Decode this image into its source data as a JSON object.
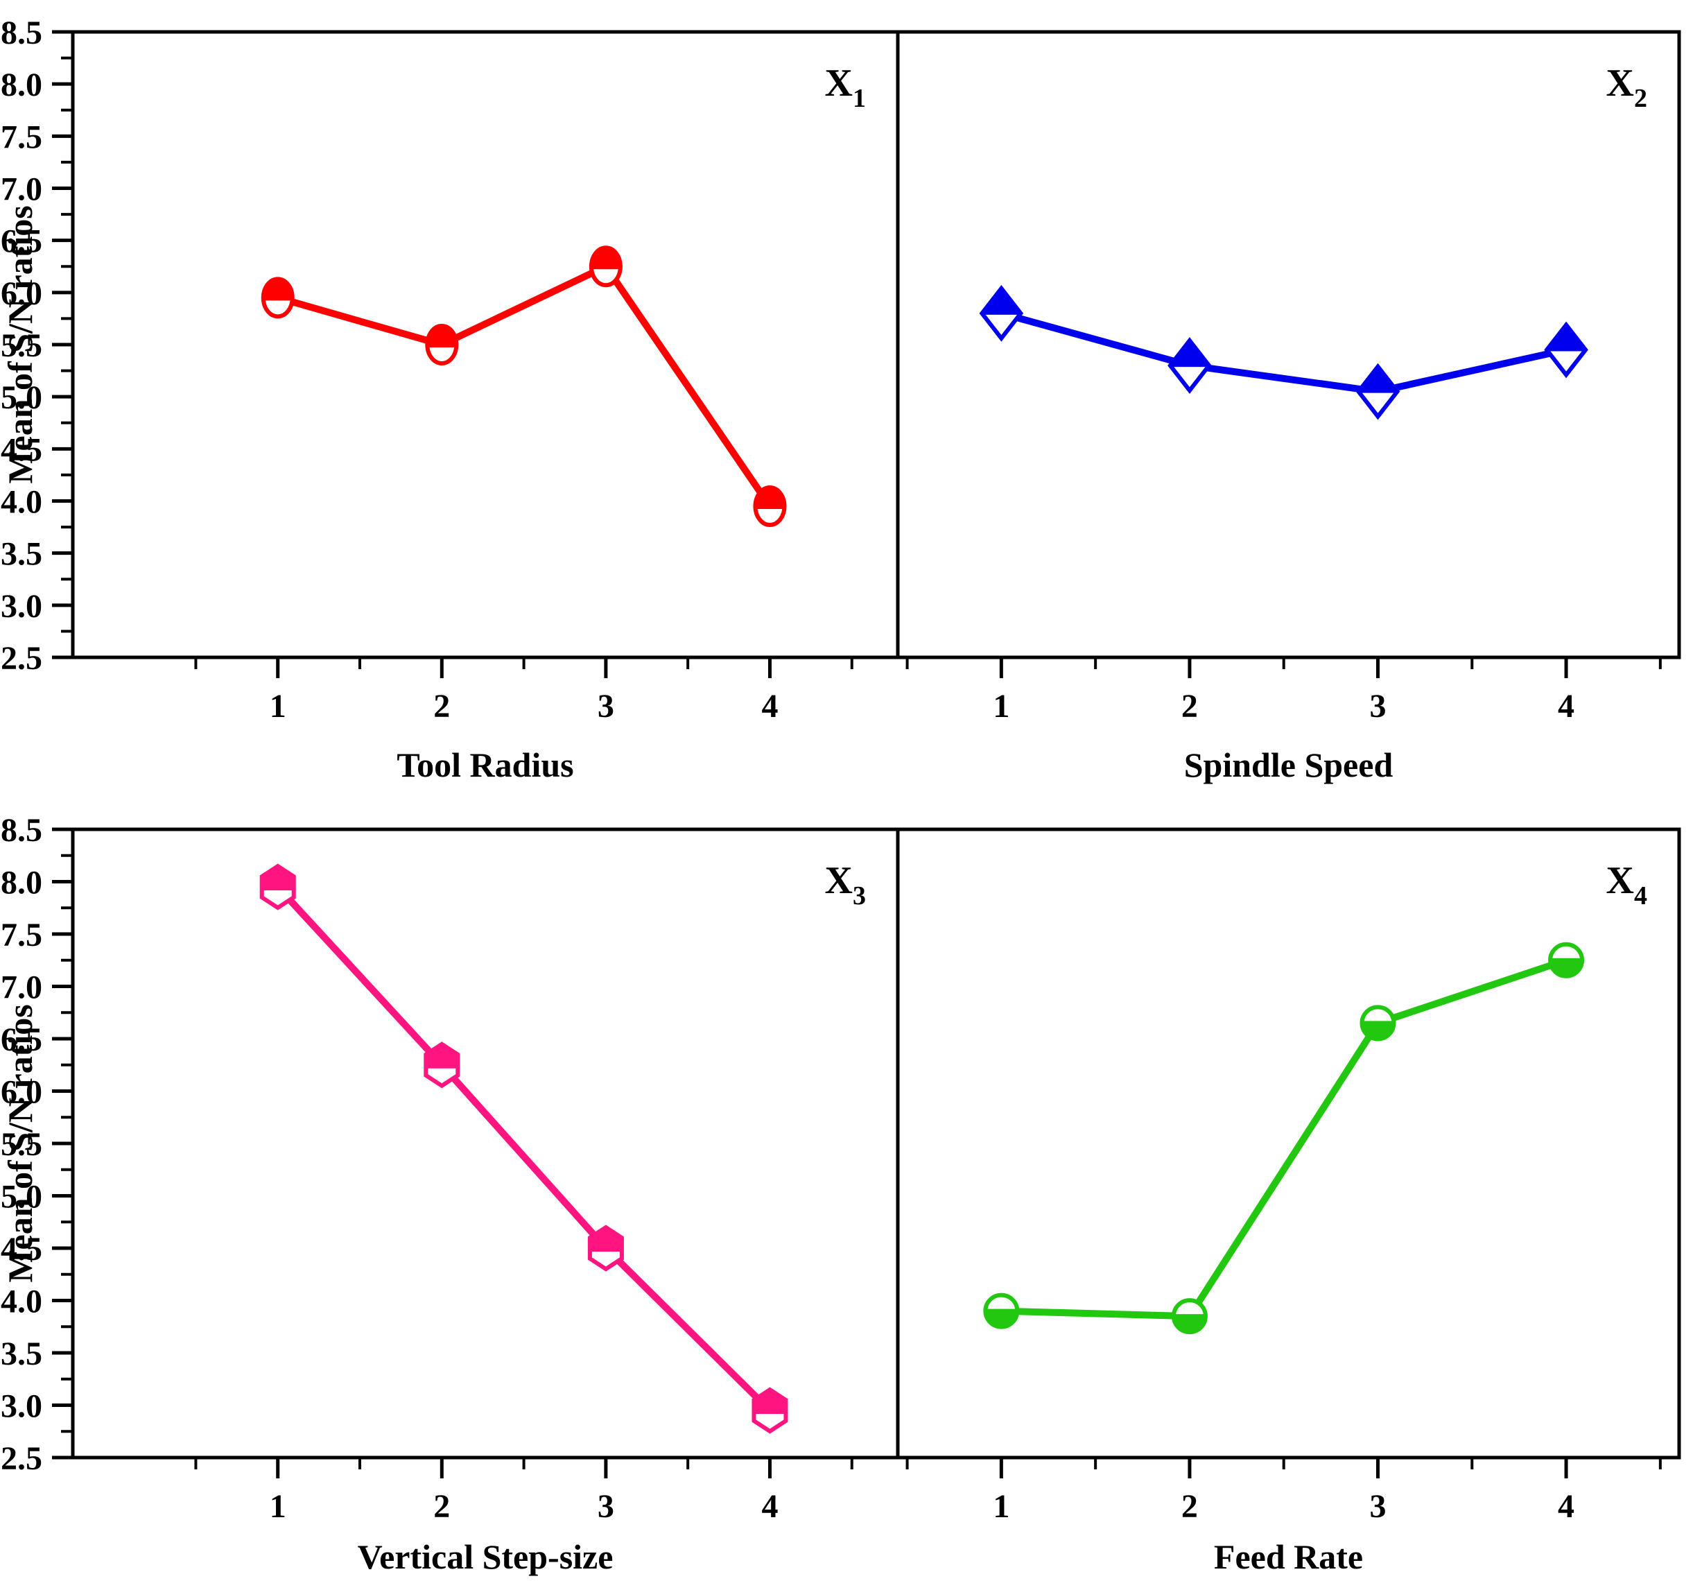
{
  "figure": {
    "background": "#ffffff",
    "frame_color": "#000000",
    "ylabel": "Mean of S/N ratios",
    "grid": "off",
    "legend": "none"
  },
  "chart_data": [
    {
      "type": "line",
      "panel": "top-left",
      "corner_label": "X",
      "corner_label_sub": "1",
      "xlabel": "Tool Radius",
      "color": "#ff0000",
      "marker": "circle-half-top",
      "x": [
        1,
        2,
        3,
        4
      ],
      "values": [
        5.95,
        5.5,
        6.25,
        3.95
      ],
      "x_tick_labels": [
        "1",
        "2",
        "3",
        "4"
      ],
      "xlim": [
        -0.25,
        4.78
      ],
      "ylim": [
        2.5,
        8.5
      ],
      "y_major_step": 0.5,
      "y_minor_step": 0.25,
      "y_tick_labels": [
        "2.5",
        "3.0",
        "3.5",
        "4.0",
        "4.5",
        "5.0",
        "5.5",
        "6.0",
        "6.5",
        "7.0",
        "7.5",
        "8.0",
        "8.5"
      ]
    },
    {
      "type": "line",
      "panel": "top-right",
      "corner_label": "X",
      "corner_label_sub": "2",
      "xlabel": "Spindle Speed",
      "color": "#0000ee",
      "marker": "diamond-half-top",
      "x": [
        1,
        2,
        3,
        4
      ],
      "values": [
        5.8,
        5.3,
        5.05,
        5.45
      ],
      "x_tick_labels": [
        "1",
        "2",
        "3",
        "4"
      ],
      "xlim": [
        0.45,
        4.6
      ],
      "ylim": [
        2.5,
        8.5
      ],
      "y_major_step": 0.5,
      "y_minor_step": 0.25,
      "y_tick_labels": []
    },
    {
      "type": "line",
      "panel": "bottom-left",
      "corner_label": "X",
      "corner_label_sub": "3",
      "xlabel": "Vertical Step-size",
      "color": "#ff1480",
      "marker": "hexagon-half-top",
      "x": [
        1,
        2,
        3,
        4
      ],
      "values": [
        7.95,
        6.25,
        4.5,
        2.95
      ],
      "x_tick_labels": [
        "1",
        "2",
        "3",
        "4"
      ],
      "xlim": [
        -0.25,
        4.78
      ],
      "ylim": [
        2.5,
        8.5
      ],
      "y_major_step": 0.5,
      "y_minor_step": 0.25,
      "y_tick_labels": [
        "2.5",
        "3.0",
        "3.5",
        "4.0",
        "4.5",
        "5.0",
        "5.5",
        "6.0",
        "6.5",
        "7.0",
        "7.5",
        "8.0",
        "8.5"
      ]
    },
    {
      "type": "line",
      "panel": "bottom-right",
      "corner_label": "X",
      "corner_label_sub": "4",
      "xlabel": "Feed Rate",
      "color": "#21c80f",
      "marker": "circle-half-bottom",
      "x": [
        1,
        2,
        3,
        4
      ],
      "values": [
        3.9,
        3.85,
        6.65,
        7.25
      ],
      "x_tick_labels": [
        "1",
        "2",
        "3",
        "4"
      ],
      "xlim": [
        0.45,
        4.6
      ],
      "ylim": [
        2.5,
        8.5
      ],
      "y_major_step": 0.5,
      "y_minor_step": 0.25,
      "y_tick_labels": []
    }
  ]
}
